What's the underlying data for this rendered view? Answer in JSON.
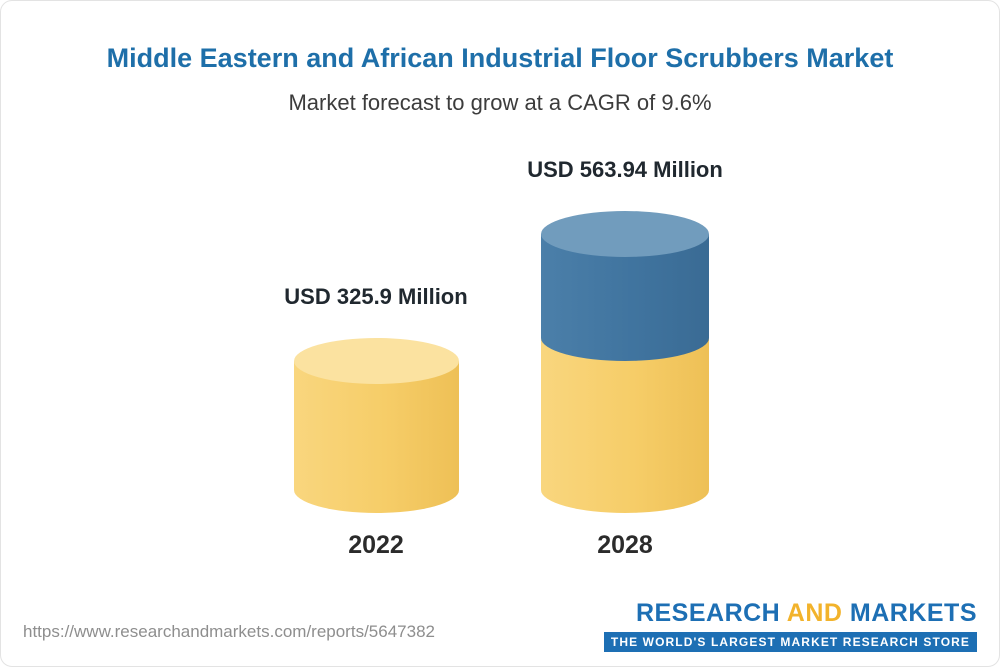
{
  "page": {
    "title": "Middle Eastern and African Industrial Floor Scrubbers Market",
    "subtitle": "Market forecast to grow at a CAGR of 9.6%",
    "footer": {
      "url": "https://www.researchandmarkets.com/reports/5647382",
      "logo": {
        "research": "RESEARCH",
        "and": "AND",
        "markets": "MARKETS",
        "tagline": "THE WORLD'S LARGEST MARKET RESEARCH STORE"
      }
    }
  },
  "colors": {
    "title_blue": "#1e6fa9",
    "subtitle_gray": "#3c3c3c",
    "value_label_dark": "#20282f",
    "url_gray": "#8e8e8e",
    "brand_blue": "#1d6fb4",
    "brand_gold": "#f2b32c",
    "cyl_yellow": "#f6cd68",
    "cyl_yellow_soft": "#f9d67e",
    "cyl_yellow_dark": "#eec056",
    "cyl_yellow_light": "#fbe2a0",
    "cyl_blue": "#40749f",
    "cyl_blue_soft": "#4b7fa9",
    "cyl_blue_dark": "#3a6b94",
    "cyl_blue_light": "#719cbd"
  },
  "chart_data": {
    "type": "bar",
    "variant": "3d-cylinder",
    "title": "Middle Eastern and African Industrial Floor Scrubbers Market",
    "subtitle": "Market forecast to grow at a CAGR of 9.6%",
    "cagr_pct": 9.6,
    "units": "USD Million",
    "categories": [
      "2022",
      "2028"
    ],
    "values": [
      325.9,
      563.94
    ],
    "value_labels": [
      "USD 325.9 Million",
      "USD 563.94 Million"
    ],
    "ylim": [
      0,
      563.94
    ],
    "grid": false,
    "legend": false,
    "notes": "2028 cylinder shows the 2022 base value in yellow with the incremental growth segment in blue stacked on top"
  }
}
